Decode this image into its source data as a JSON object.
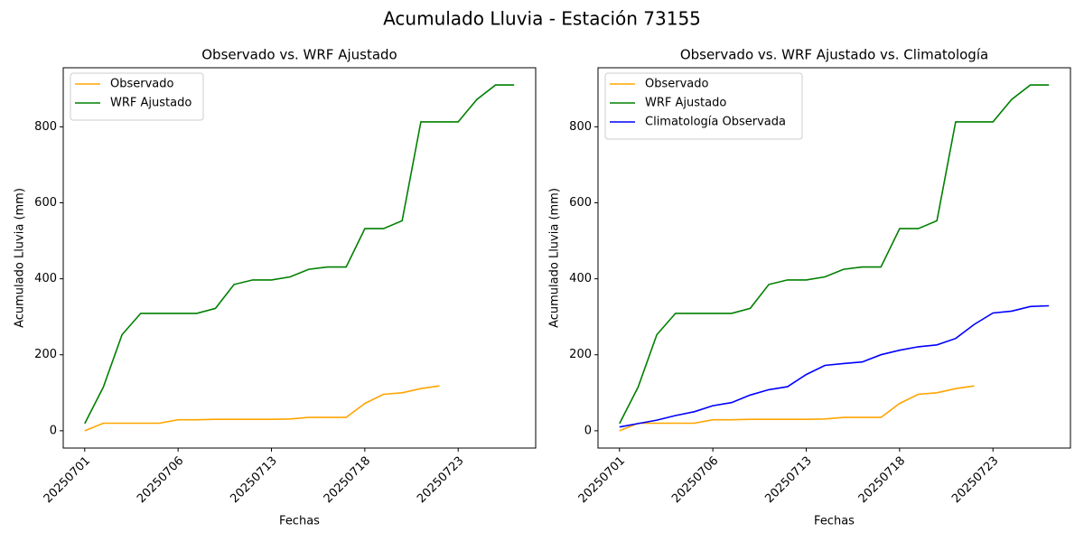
{
  "title": "Acumulado Lluvia - Estación 73155",
  "chart_data": [
    {
      "type": "line",
      "title": "Observado vs. WRF Ajustado",
      "xlabel": "Fechas",
      "ylabel": "Acumulado Lluvia (mm)",
      "categories": [
        "20250701",
        null,
        null,
        null,
        null,
        "20250706",
        null,
        null,
        null,
        null,
        "20250713",
        null,
        null,
        null,
        null,
        "20250718",
        null,
        null,
        null,
        null,
        "20250723",
        null,
        null,
        null
      ],
      "series": [
        {
          "name": "Observado",
          "color": "#ffa500",
          "values": [
            0,
            20,
            20,
            20,
            20,
            29,
            29,
            30,
            30,
            30,
            30,
            31,
            35,
            35,
            35,
            72,
            96,
            100,
            111,
            118,
            null,
            null,
            null,
            null
          ]
        },
        {
          "name": "WRF Ajustado",
          "color": "#008000",
          "values": [
            19,
            115,
            253,
            309,
            309,
            309,
            309,
            322,
            385,
            397,
            397,
            405,
            425,
            431,
            431,
            532,
            532,
            553,
            813,
            813,
            813,
            872,
            910,
            910
          ]
        }
      ],
      "ylim": [
        -45.5,
        955.5
      ],
      "yticks": [
        0,
        200,
        400,
        600,
        800
      ],
      "legend": "upper left"
    },
    {
      "type": "line",
      "title": "Observado vs. WRF Ajustado vs. Climatología",
      "xlabel": "Fechas",
      "ylabel": "Acumulado Lluvia (mm)",
      "categories": [
        "20250701",
        null,
        null,
        null,
        null,
        "20250706",
        null,
        null,
        null,
        null,
        "20250713",
        null,
        null,
        null,
        null,
        "20250718",
        null,
        null,
        null,
        null,
        "20250723",
        null,
        null,
        null
      ],
      "series": [
        {
          "name": "Observado",
          "color": "#ffa500",
          "values": [
            0,
            20,
            20,
            20,
            20,
            29,
            29,
            30,
            30,
            30,
            30,
            31,
            35,
            35,
            35,
            72,
            96,
            100,
            111,
            118,
            null,
            null,
            null,
            null
          ]
        },
        {
          "name": "WRF Ajustado",
          "color": "#008000",
          "values": [
            19,
            115,
            253,
            309,
            309,
            309,
            309,
            322,
            385,
            397,
            397,
            405,
            425,
            431,
            431,
            532,
            532,
            553,
            813,
            813,
            813,
            872,
            910,
            910
          ]
        },
        {
          "name": "Climatología Observada",
          "color": "#0000ff",
          "values": [
            10,
            19,
            28,
            40,
            50,
            66,
            74,
            94,
            108,
            116,
            148,
            172,
            177,
            181,
            200,
            212,
            221,
            226,
            243,
            280,
            310,
            315,
            327,
            329
          ]
        }
      ],
      "ylim": [
        -45.5,
        955.5
      ],
      "yticks": [
        0,
        200,
        400,
        600,
        800
      ],
      "legend": "upper left"
    }
  ]
}
